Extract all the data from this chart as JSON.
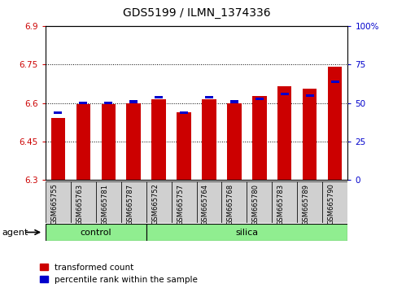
{
  "title": "GDS5199 / ILMN_1374336",
  "samples": [
    "GSM665755",
    "GSM665763",
    "GSM665781",
    "GSM665787",
    "GSM665752",
    "GSM665757",
    "GSM665764",
    "GSM665768",
    "GSM665780",
    "GSM665783",
    "GSM665789",
    "GSM665790"
  ],
  "groups": [
    "control",
    "control",
    "control",
    "control",
    "silica",
    "silica",
    "silica",
    "silica",
    "silica",
    "silica",
    "silica",
    "silica"
  ],
  "transformed_count": [
    6.54,
    6.596,
    6.596,
    6.598,
    6.613,
    6.565,
    6.614,
    6.6,
    6.628,
    6.666,
    6.656,
    6.742
  ],
  "percentile_rank": [
    43,
    49,
    49,
    50,
    53,
    43,
    53,
    50,
    52,
    55,
    54,
    63
  ],
  "ylim_left": [
    6.3,
    6.9
  ],
  "ylim_right": [
    0,
    100
  ],
  "yticks_left": [
    6.3,
    6.45,
    6.6,
    6.75,
    6.9
  ],
  "yticks_right": [
    0,
    25,
    50,
    75,
    100
  ],
  "ytick_labels_left": [
    "6.3",
    "6.45",
    "6.6",
    "6.75",
    "6.9"
  ],
  "ytick_labels_right": [
    "0",
    "25",
    "50",
    "75",
    "100%"
  ],
  "bar_color_red": "#cc0000",
  "bar_color_blue": "#0000cc",
  "bar_width": 0.55,
  "blue_bar_width": 0.3,
  "blue_bar_height": 0.01,
  "agent_label": "agent",
  "control_label": "control",
  "silica_label": "silica",
  "legend_red": "transformed count",
  "legend_blue": "percentile rank within the sample",
  "group_color": "#90ee90",
  "background_color": "#ffffff",
  "sample_bg_color": "#d0d0d0",
  "title_fontsize": 10,
  "tick_fontsize": 7.5,
  "sample_fontsize": 6.0,
  "legend_fontsize": 7.5,
  "group_fontsize": 8,
  "n_control": 4,
  "n_silica": 8
}
